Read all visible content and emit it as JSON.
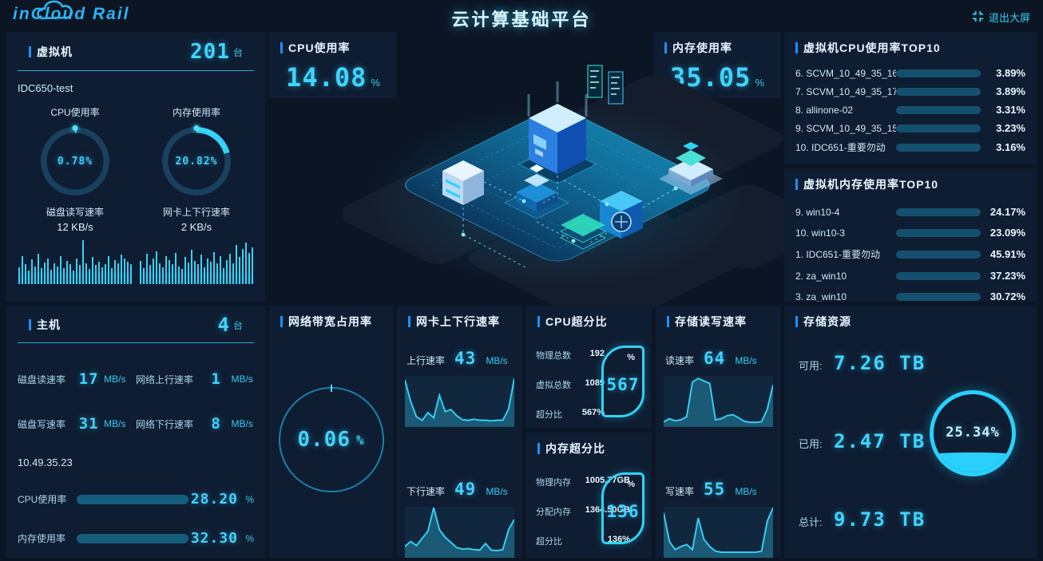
{
  "colors": {
    "accent": "#2fb9f2",
    "digital": "#3fd4ff",
    "bar_fill": "#29d0fb",
    "bar_track": "#14506e",
    "panel_bg": "#0e1d32",
    "page_bg": "#0c1524"
  },
  "header": {
    "logo": "inCloud Rail",
    "title": "云计算基础平台",
    "exit_label": "退出大屏"
  },
  "vm_panel": {
    "title": "虚拟机",
    "count": "201",
    "count_unit": "台",
    "host_name": "IDC650-test",
    "cpu_ring": {
      "label": "CPU使用率",
      "value": "0.78%",
      "pct": 0.78
    },
    "mem_ring": {
      "label": "内存使用率",
      "value": "20.82%",
      "pct": 20.82
    },
    "disk_spark": {
      "label": "磁盘读写速率",
      "value": "12 KB/s",
      "bars": [
        38,
        62,
        45,
        30,
        55,
        40,
        68,
        35,
        48,
        58,
        33,
        46,
        40,
        62,
        36,
        52,
        44,
        30,
        57,
        42,
        98,
        47,
        34,
        60,
        43,
        50,
        38,
        45,
        63,
        36,
        54,
        47,
        66,
        58,
        50,
        44
      ]
    },
    "nic_spark": {
      "label": "网卡上下行速率",
      "value": "2 KB/s",
      "bars": [
        52,
        36,
        68,
        42,
        58,
        74,
        46,
        38,
        62,
        54,
        45,
        70,
        40,
        34,
        60,
        48,
        76,
        52,
        44,
        66,
        38,
        57,
        50,
        72,
        46,
        62,
        36,
        54,
        68,
        46,
        88,
        60,
        78,
        92,
        70,
        82
      ]
    }
  },
  "cpu_digital": {
    "title": "CPU使用率",
    "value": "14.08",
    "unit": "%"
  },
  "mem_digital": {
    "title": "内存使用率",
    "value": "35.05",
    "unit": "%"
  },
  "cpu_top10": {
    "title": "虚拟机CPU使用率TOP10",
    "items": [
      {
        "name": "6. SCVM_10_49_35_16",
        "value": "3.89%",
        "pct": 3.89
      },
      {
        "name": "7. SCVM_10_49_35_17",
        "value": "3.89%",
        "pct": 3.89
      },
      {
        "name": "8. allinone-02",
        "value": "3.31%",
        "pct": 3.31
      },
      {
        "name": "9. SCVM_10_49_35_15",
        "value": "3.23%",
        "pct": 3.23
      },
      {
        "name": "10. IDC651-重要勿动",
        "value": "3.16%",
        "pct": 3.16
      }
    ]
  },
  "mem_top10": {
    "title": "虚拟机内存使用率TOP10",
    "items": [
      {
        "name": "9. win10-4",
        "value": "24.17%",
        "pct": 24.17
      },
      {
        "name": "10. win10-3",
        "value": "23.09%",
        "pct": 23.09
      },
      {
        "name": "1. IDC651-重要勿动",
        "value": "45.91%",
        "pct": 45.91
      },
      {
        "name": "2. za_win10",
        "value": "37.23%",
        "pct": 37.23
      },
      {
        "name": "3. za_win10",
        "value": "30.72%",
        "pct": 30.72
      }
    ]
  },
  "host_panel": {
    "title": "主机",
    "count": "4",
    "count_unit": "台",
    "ip": "10.49.35.23",
    "stats": [
      {
        "label": "磁盘读速率",
        "value": "17",
        "unit": "MB/s"
      },
      {
        "label": "网络上行速率",
        "value": "1",
        "unit": "MB/s"
      },
      {
        "label": "磁盘写速率",
        "value": "31",
        "unit": "MB/s"
      },
      {
        "label": "网络下行速率",
        "value": "8",
        "unit": "MB/s"
      }
    ],
    "bars": [
      {
        "label": "CPU使用率",
        "value": "28.20",
        "unit": "%",
        "pct": 28.2
      },
      {
        "label": "内存使用率",
        "value": "32.30",
        "unit": "%",
        "pct": 32.3
      }
    ]
  },
  "bandwidth_panel": {
    "title": "网络带宽占用率",
    "value": "0.06",
    "unit": "%"
  },
  "nic_panel": {
    "title": "网卡上下行速率",
    "charts": [
      {
        "label": "上行速率",
        "value": "43",
        "unit": "MB/s",
        "points": [
          92,
          50,
          20,
          13,
          28,
          18,
          62,
          30,
          34,
          22,
          14,
          13,
          15,
          13,
          13,
          12,
          13,
          13,
          35,
          95
        ]
      },
      {
        "label": "下行速率",
        "value": "49",
        "unit": "MB/s",
        "points": [
          22,
          32,
          24,
          38,
          52,
          98,
          55,
          40,
          30,
          20,
          17,
          18,
          16,
          15,
          28,
          15,
          14,
          16,
          55,
          75
        ]
      }
    ]
  },
  "cpu_ratio_panel": {
    "title": "CPU超分比",
    "rows": [
      {
        "label": "物理总数",
        "value": "192"
      },
      {
        "label": "虚拟总数",
        "value": "1089"
      },
      {
        "label": "超分比",
        "value": "567%"
      }
    ],
    "badge_value": "567",
    "badge_unit": "%"
  },
  "mem_ratio_panel": {
    "title": "内存超分比",
    "rows": [
      {
        "label": "物理内存",
        "value": "1005.77GB"
      },
      {
        "label": "分配内存",
        "value": "1364.50GB"
      },
      {
        "label": "超分比",
        "value": "136%"
      }
    ],
    "badge_value": "136",
    "badge_unit": "%"
  },
  "storage_rate_panel": {
    "title": "存储读写速率",
    "charts": [
      {
        "label": "读速率",
        "value": "64",
        "unit": "MB/s",
        "points": [
          10,
          16,
          12,
          14,
          20,
          88,
          95,
          90,
          85,
          14,
          16,
          22,
          24,
          18,
          11,
          9,
          9,
          10,
          35,
          82
        ]
      },
      {
        "label": "写速率",
        "value": "55",
        "unit": "MB/s",
        "points": [
          88,
          32,
          16,
          22,
          26,
          16,
          78,
          36,
          22,
          13,
          11,
          11,
          11,
          11,
          11,
          11,
          11,
          13,
          72,
          98
        ]
      }
    ]
  },
  "storage_panel": {
    "title": "存储资源",
    "rows": [
      {
        "label": "可用:",
        "value": "7.26 TB"
      },
      {
        "label": "已用:",
        "value": "2.47 TB"
      },
      {
        "label": "总计:",
        "value": "9.73 TB"
      }
    ],
    "gauge": {
      "value": "25.34%",
      "pct": 25.34
    }
  }
}
